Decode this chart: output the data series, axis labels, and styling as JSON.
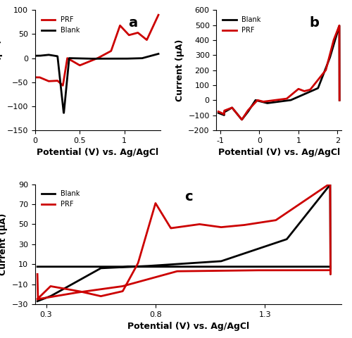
{
  "panel_a": {
    "label": "a",
    "xlabel": "Potential (V) vs. Ag/AgCl",
    "ylabel": "Current (μA)",
    "xlim": [
      0,
      1.4
    ],
    "ylim": [
      -150,
      100
    ],
    "yticks": [
      -150,
      -100,
      -50,
      0,
      50,
      100
    ],
    "xticks": [
      0,
      0.5,
      1.0
    ],
    "xticklabels": [
      "0",
      "0.5",
      "1"
    ],
    "legend_order": [
      "PRF",
      "Blank"
    ],
    "line_blank_color": "#000000",
    "line_prf_color": "#cc0000"
  },
  "panel_b": {
    "label": "b",
    "xlabel": "Potential (V) vs. Ag/AgCl",
    "ylabel": "Current (μA)",
    "xlim": [
      -1.1,
      2.1
    ],
    "ylim": [
      -200,
      600
    ],
    "yticks": [
      -200,
      -100,
      0,
      100,
      200,
      300,
      400,
      500,
      600
    ],
    "xticks": [
      -1,
      0,
      1,
      2
    ],
    "xticklabels": [
      "-1",
      "0",
      "1",
      "2"
    ],
    "legend_order": [
      "Blank",
      "PRF"
    ],
    "line_blank_color": "#000000",
    "line_prf_color": "#cc0000"
  },
  "panel_c": {
    "label": "c",
    "xlabel": "Potential (V) vs. Ag/AgCl",
    "ylabel": "Current (μA)",
    "xlim": [
      0.25,
      1.65
    ],
    "ylim": [
      -30,
      90
    ],
    "yticks": [
      -30,
      -10,
      10,
      30,
      50,
      70,
      90
    ],
    "xticks": [
      0.3,
      0.8,
      1.3
    ],
    "xticklabels": [
      "0.3",
      "0.8",
      "1.3"
    ],
    "legend_order": [
      "Blank",
      "PRF"
    ],
    "line_blank_color": "#000000",
    "line_prf_color": "#cc0000"
  },
  "background_color": "#ffffff",
  "linewidth": 2.0,
  "label_fontsize": 9,
  "tick_fontsize": 8,
  "panel_label_fontsize": 14
}
